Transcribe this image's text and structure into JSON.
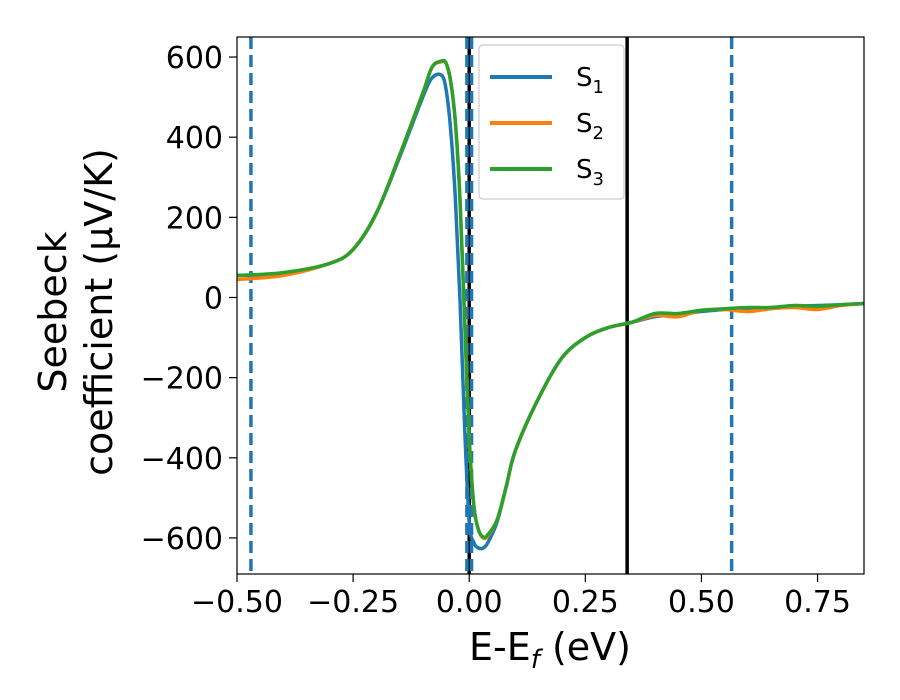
{
  "chart_data": {
    "type": "line",
    "xlabel": "E-E",
    "xlabel_sub": "f",
    "xlabel_unit": " (eV)",
    "ylabel_line1": "Seebeck",
    "ylabel_line2": "coefficient  (μV/K)",
    "xlim": [
      -0.5,
      0.85
    ],
    "ylim": [
      -690,
      650
    ],
    "xticks": [
      -0.5,
      -0.25,
      0.0,
      0.25,
      0.5,
      0.75
    ],
    "xtick_labels": [
      "−0.50",
      "−0.25",
      "0.00",
      "0.25",
      "0.50",
      "0.75"
    ],
    "yticks": [
      600,
      400,
      200,
      0,
      -200,
      -400,
      -600
    ],
    "ytick_labels": [
      "600",
      "400",
      "200",
      "0",
      "−200",
      "−400",
      "−600"
    ],
    "legend_position": "top-right",
    "grid": false,
    "series": [
      {
        "name": "S",
        "sub": "1",
        "color": "#1f77b4",
        "x": [
          -0.5,
          -0.4,
          -0.3,
          -0.25,
          -0.2,
          -0.15,
          -0.1,
          -0.08,
          -0.06,
          -0.05,
          -0.04,
          -0.03,
          -0.02,
          -0.01,
          0.0,
          0.01,
          0.02,
          0.03,
          0.04,
          0.06,
          0.08,
          0.1,
          0.15,
          0.2,
          0.25,
          0.3,
          0.35,
          0.4,
          0.45,
          0.5,
          0.55,
          0.6,
          0.65,
          0.7,
          0.75,
          0.8,
          0.85
        ],
        "y": [
          55,
          60,
          85,
          120,
          210,
          350,
          500,
          548,
          555,
          520,
          420,
          250,
          0,
          -320,
          -560,
          -612,
          -625,
          -625,
          -612,
          -560,
          -470,
          -380,
          -250,
          -150,
          -100,
          -75,
          -62,
          -48,
          -42,
          -35,
          -30,
          -28,
          -25,
          -22,
          -20,
          -18,
          -15
        ]
      },
      {
        "name": "S",
        "sub": "2",
        "color": "#ff7f0e",
        "x": [
          -0.5,
          -0.4,
          -0.3,
          -0.25,
          -0.2,
          -0.15,
          -0.1,
          -0.08,
          -0.06,
          -0.05,
          -0.04,
          -0.03,
          -0.02,
          -0.01,
          0.0,
          0.01,
          0.02,
          0.03,
          0.04,
          0.06,
          0.08,
          0.1,
          0.15,
          0.2,
          0.25,
          0.3,
          0.35,
          0.4,
          0.45,
          0.5,
          0.55,
          0.6,
          0.65,
          0.7,
          0.75,
          0.8,
          0.85
        ],
        "y": [
          45,
          55,
          85,
          120,
          210,
          355,
          510,
          575,
          588,
          585,
          540,
          440,
          250,
          -50,
          -350,
          -520,
          -580,
          -600,
          -595,
          -555,
          -470,
          -380,
          -250,
          -150,
          -100,
          -75,
          -62,
          -45,
          -48,
          -32,
          -30,
          -35,
          -28,
          -25,
          -30,
          -20,
          -15
        ]
      },
      {
        "name": "S",
        "sub": "3",
        "color": "#2ca02c",
        "x": [
          -0.5,
          -0.4,
          -0.3,
          -0.25,
          -0.2,
          -0.15,
          -0.1,
          -0.08,
          -0.06,
          -0.05,
          -0.04,
          -0.03,
          -0.02,
          -0.01,
          0.0,
          0.01,
          0.02,
          0.03,
          0.04,
          0.06,
          0.08,
          0.1,
          0.15,
          0.2,
          0.25,
          0.3,
          0.35,
          0.4,
          0.45,
          0.5,
          0.55,
          0.6,
          0.65,
          0.7,
          0.75,
          0.8,
          0.85
        ],
        "y": [
          55,
          62,
          85,
          120,
          210,
          355,
          510,
          575,
          590,
          585,
          540,
          440,
          250,
          -50,
          -350,
          -520,
          -580,
          -598,
          -592,
          -555,
          -470,
          -380,
          -250,
          -150,
          -100,
          -75,
          -62,
          -40,
          -40,
          -32,
          -28,
          -25,
          -25,
          -20,
          -22,
          -18,
          -15
        ]
      }
    ],
    "vertical_lines": [
      {
        "x": -0.47,
        "color": "#1f77b4",
        "style": "dashed"
      },
      {
        "x": 0.0,
        "color": "#000000",
        "style": "solid"
      },
      {
        "x": -0.005,
        "color": "#1f77b4",
        "style": "dashed"
      },
      {
        "x": 0.005,
        "color": "#1f77b4",
        "style": "dashed"
      },
      {
        "x": 0.34,
        "color": "#000000",
        "style": "solid"
      },
      {
        "x": 0.565,
        "color": "#1f77b4",
        "style": "dashed"
      }
    ]
  }
}
